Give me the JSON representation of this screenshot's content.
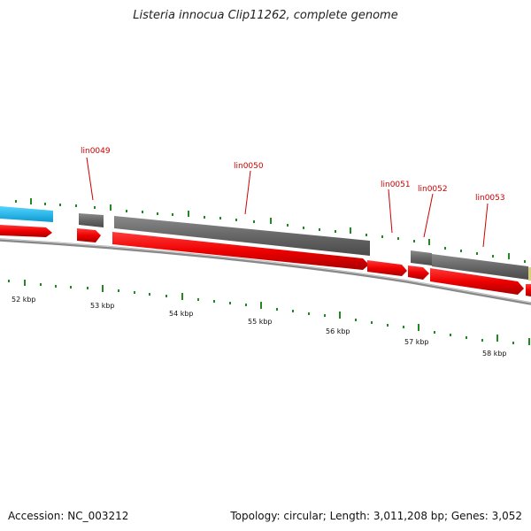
{
  "title": "Listeria innocua Clip11262, complete genome",
  "accession": "Accession: NC_003212",
  "stats": "Topology: circular; Length: 3,011,208 bp; Genes: 3,052",
  "colors": {
    "gene_forward": "#ee0000",
    "gene_reverse": "#666666",
    "gene_cyan": "#1ab8ee",
    "gene_yellow": "#d8cf7a",
    "label": "#cc0000",
    "tick": "#228822",
    "backbone": "#777777"
  },
  "scale_labels": [
    "52 kbp",
    "53 kbp",
    "54 kbp",
    "55 kbp",
    "56 kbp",
    "57 kbp",
    "58 kbp"
  ],
  "gene_labels": [
    "lin0049",
    "lin0050",
    "lin0051",
    "lin0052",
    "lin0053"
  ]
}
